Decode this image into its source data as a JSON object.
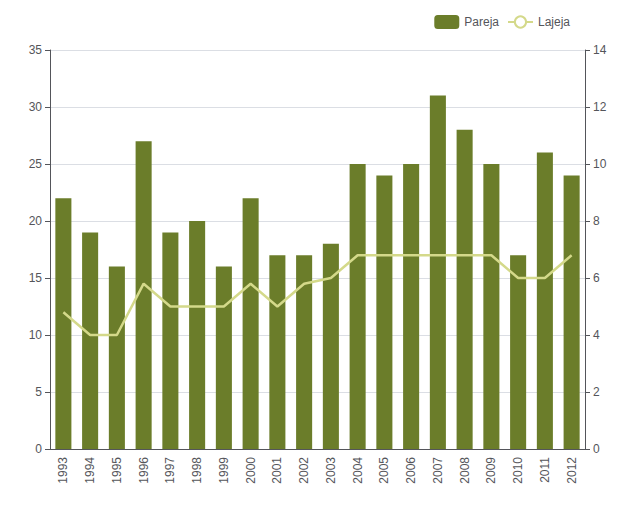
{
  "chart_data": {
    "type": "bar",
    "categories": [
      "1993",
      "1994",
      "1995",
      "1996",
      "1997",
      "1998",
      "1999",
      "2000",
      "2001",
      "2002",
      "2003",
      "2004",
      "2005",
      "2006",
      "2007",
      "2008",
      "2009",
      "2010",
      "2011",
      "2012"
    ],
    "series": [
      {
        "name": "Pareja",
        "type": "bar",
        "color": "#6b7d2a",
        "axis": "y",
        "values": [
          22,
          19,
          16,
          27,
          19,
          20,
          16,
          22,
          17,
          17,
          18,
          25,
          24,
          25,
          31,
          28,
          25,
          17,
          26,
          24
        ]
      },
      {
        "name": "Lajeja",
        "type": "line",
        "color": "#d4d98a",
        "axis": "y2",
        "values": [
          4.8,
          4.0,
          4.0,
          5.8,
          5.0,
          5.0,
          5.0,
          5.8,
          5.0,
          5.8,
          6.0,
          6.8,
          6.8,
          6.8,
          6.8,
          6.8,
          6.8,
          6.0,
          6.0,
          6.8
        ]
      }
    ],
    "ylim": [
      0,
      35
    ],
    "yticks": [
      0,
      5,
      10,
      15,
      20,
      25,
      30,
      35
    ],
    "y2lim": [
      0,
      14
    ],
    "y2ticks": [
      0,
      2,
      4,
      6,
      8,
      10,
      12,
      14
    ],
    "grid": true,
    "legend": "upper right"
  }
}
